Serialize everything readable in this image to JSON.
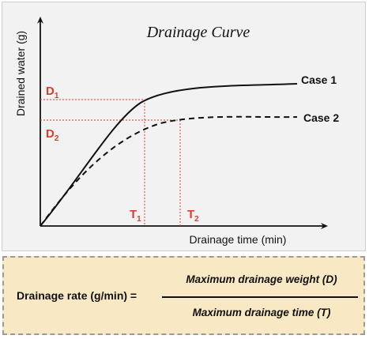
{
  "diagram": {
    "title": "Drainage Curve",
    "x_axis_label": "Drainage time (min)",
    "y_axis_label": "Drained water (g)",
    "curves": [
      {
        "name": "Case 1",
        "line_style": "solid"
      },
      {
        "name": "Case 2",
        "line_style": "dashed"
      }
    ],
    "markers": {
      "d1": {
        "main": "D",
        "sub": "1"
      },
      "d2": {
        "main": "D",
        "sub": "2"
      },
      "t1": {
        "main": "T",
        "sub": "1"
      },
      "t2": {
        "main": "T",
        "sub": "2"
      }
    },
    "colors": {
      "marker_text": "#e03a2f",
      "guide_lines": "#e03a2f",
      "curves": "#111111",
      "panel_background": "#f2f2f2",
      "formula_background": "#f8e9c4"
    }
  },
  "formula": {
    "lhs": "Drainage rate (g/min) =",
    "numerator": "Maximum drainage weight (D)",
    "denominator": "Maximum drainage time (T)"
  }
}
